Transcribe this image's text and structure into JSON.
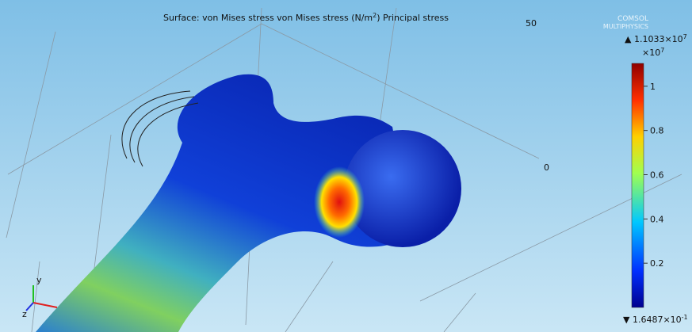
{
  "header": {
    "title": {
      "text": "Surface: von Mises stress von Mises stress (N/m",
      "sup": "2",
      "tail": ") Principal stress"
    },
    "logo": [
      "COMSOL",
      "MULTIPHYSICS"
    ]
  },
  "axes": {
    "labels": [
      "50",
      "0"
    ]
  },
  "triad": [
    "y",
    "z"
  ],
  "colorbar": {
    "max": {
      "prefix": "▲ 1.1033×10",
      "exp": "7"
    },
    "scale": {
      "prefix": "×10",
      "exp": "7"
    },
    "min": {
      "prefix": "▼ 1.6487×10",
      "exp": "-1"
    },
    "ylim": [
      0,
      1.1033
    ],
    "yticks": [
      1,
      0.8,
      0.6,
      0.4,
      0.2
    ]
  }
}
